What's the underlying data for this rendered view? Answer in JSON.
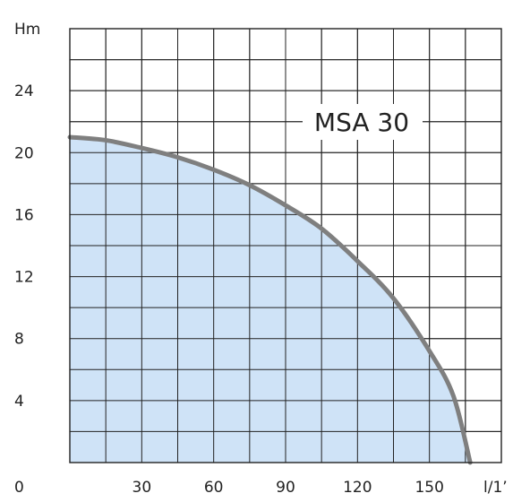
{
  "chart_data": {
    "type": "area",
    "title": "MSA 30",
    "xlabel": "l/1’",
    "ylabel": "Hm",
    "xlim": [
      0,
      180
    ],
    "ylim": [
      0,
      28
    ],
    "x_ticks": [
      30,
      60,
      90,
      120,
      150
    ],
    "y_ticks": [
      4,
      8,
      12,
      16,
      20,
      24
    ],
    "origin_label": "0",
    "grid": true,
    "x_grid_step": 15,
    "y_grid_step": 2,
    "series": [
      {
        "x": [
          0,
          15,
          30,
          45,
          60,
          75,
          90,
          105,
          120,
          135,
          150,
          160,
          167
        ],
        "y": [
          21,
          20.8,
          20.3,
          19.7,
          18.9,
          17.9,
          16.6,
          15.1,
          13.0,
          10.6,
          7.2,
          4.3,
          0
        ]
      }
    ],
    "colors": {
      "fill": "#cfe3f7",
      "curve": "#7f7f7f",
      "grid": "#222222",
      "text": "#222222"
    }
  }
}
